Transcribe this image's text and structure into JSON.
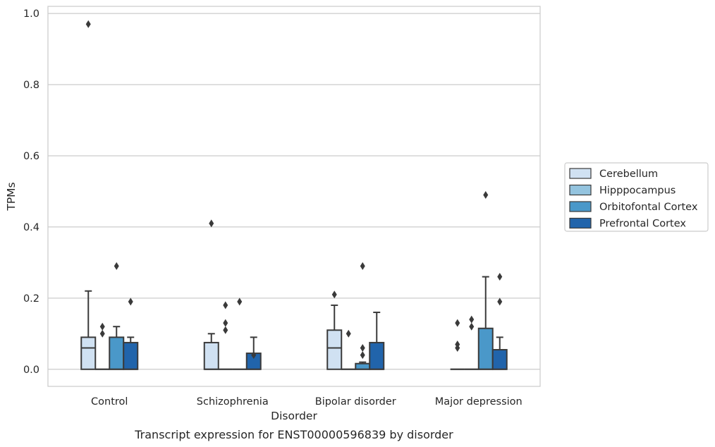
{
  "chart_data": {
    "type": "box",
    "title": "",
    "caption": "Transcript expression for ENST00000596839 by disorder",
    "xlabel": "Disorder",
    "ylabel": "TPMs",
    "ylim": [
      -0.048,
      1.02
    ],
    "yticks": [
      0.0,
      0.2,
      0.4,
      0.6,
      0.8,
      1.0
    ],
    "ytick_labels": [
      "0.0",
      "0.2",
      "0.4",
      "0.6",
      "0.8",
      "1.0"
    ],
    "grid": "horizontal",
    "legend_position": "right",
    "categories": [
      "Control",
      "Schizophrenia",
      "Bipolar disorder",
      "Major depression"
    ],
    "series": [
      {
        "name": "Cerebellum",
        "color": "#d0e1f2",
        "boxes": [
          {
            "q1": 0.0,
            "median": 0.06,
            "q3": 0.09,
            "whisker_low": 0.0,
            "whisker_high": 0.22,
            "outliers": [
              0.97
            ]
          },
          {
            "q1": 0.0,
            "median": 0.0,
            "q3": 0.075,
            "whisker_low": 0.0,
            "whisker_high": 0.1,
            "outliers": [
              0.41
            ]
          },
          {
            "q1": 0.0,
            "median": 0.06,
            "q3": 0.11,
            "whisker_low": 0.0,
            "whisker_high": 0.18,
            "outliers": [
              0.21
            ]
          },
          {
            "q1": 0.0,
            "median": 0.0,
            "q3": 0.0,
            "whisker_low": 0.0,
            "whisker_high": 0.0,
            "outliers": [
              0.06,
              0.07,
              0.13
            ]
          }
        ]
      },
      {
        "name": "Hipppocampus",
        "color": "#94c4df",
        "boxes": [
          {
            "q1": 0.0,
            "median": 0.0,
            "q3": 0.0,
            "whisker_low": 0.0,
            "whisker_high": 0.0,
            "outliers": [
              0.1,
              0.12
            ]
          },
          {
            "q1": 0.0,
            "median": 0.0,
            "q3": 0.0,
            "whisker_low": 0.0,
            "whisker_high": 0.0,
            "outliers": [
              0.11,
              0.13,
              0.18
            ]
          },
          {
            "q1": 0.0,
            "median": 0.0,
            "q3": 0.0,
            "whisker_low": 0.0,
            "whisker_high": 0.0,
            "outliers": [
              0.1
            ]
          },
          {
            "q1": 0.0,
            "median": 0.0,
            "q3": 0.0,
            "whisker_low": 0.0,
            "whisker_high": 0.0,
            "outliers": [
              0.12,
              0.14
            ]
          }
        ]
      },
      {
        "name": "Orbitofontal Cortex",
        "color": "#4a98c9",
        "boxes": [
          {
            "q1": 0.0,
            "median": 0.0,
            "q3": 0.09,
            "whisker_low": 0.0,
            "whisker_high": 0.12,
            "outliers": [
              0.29
            ]
          },
          {
            "q1": 0.0,
            "median": 0.0,
            "q3": 0.0,
            "whisker_low": 0.0,
            "whisker_high": 0.0,
            "outliers": [
              0.19
            ]
          },
          {
            "q1": 0.0,
            "median": 0.0,
            "q3": 0.016,
            "whisker_low": 0.0,
            "whisker_high": 0.02,
            "outliers": [
              0.04,
              0.06,
              0.29
            ]
          },
          {
            "q1": 0.0,
            "median": 0.0,
            "q3": 0.115,
            "whisker_low": 0.0,
            "whisker_high": 0.26,
            "outliers": [
              0.49
            ]
          }
        ]
      },
      {
        "name": "Prefrontal Cortex",
        "color": "#2164ab",
        "boxes": [
          {
            "q1": 0.0,
            "median": 0.0,
            "q3": 0.075,
            "whisker_low": 0.0,
            "whisker_high": 0.09,
            "outliers": [
              0.19
            ]
          },
          {
            "q1": 0.0,
            "median": 0.0,
            "q3": 0.045,
            "whisker_low": 0.0,
            "whisker_high": 0.09,
            "outliers": [
              0.04
            ]
          },
          {
            "q1": 0.0,
            "median": 0.0,
            "q3": 0.075,
            "whisker_low": 0.0,
            "whisker_high": 0.16,
            "outliers": []
          },
          {
            "q1": 0.0,
            "median": 0.0,
            "q3": 0.055,
            "whisker_low": 0.0,
            "whisker_high": 0.09,
            "outliers": [
              0.19,
              0.26
            ]
          }
        ]
      }
    ]
  }
}
